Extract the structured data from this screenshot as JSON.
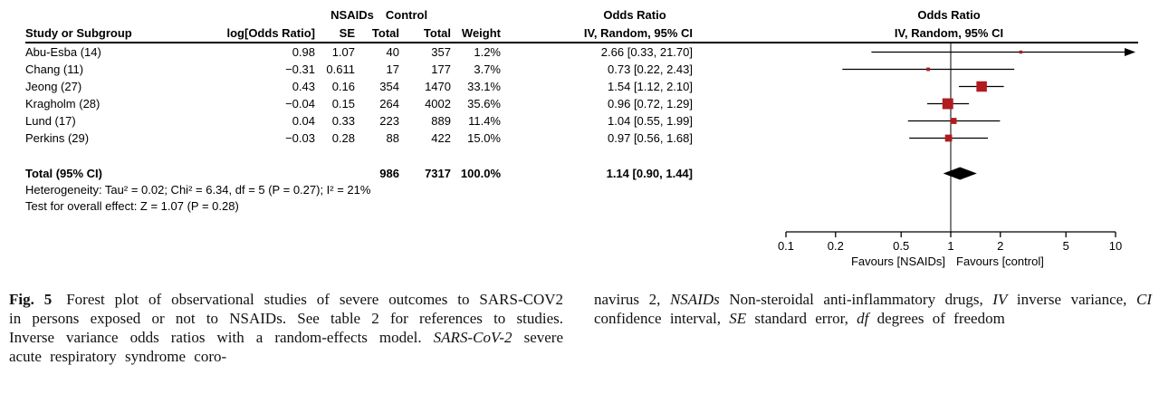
{
  "colors": {
    "marker": "#b01c20",
    "line": "#000000",
    "diamond": "#000000"
  },
  "table": {
    "group_headers": {
      "nsaids": "NSAIDs",
      "control": "Control",
      "odds_ratio_stats": "Odds Ratio",
      "odds_ratio_plot": "Odds Ratio"
    },
    "col_headers": {
      "study": "Study or Subgroup",
      "log_or": "log[Odds Ratio]",
      "se": "SE",
      "total_nsaids": "Total",
      "total_control": "Total",
      "weight": "Weight",
      "or_ci": "IV, Random, 95% CI",
      "plot": "IV, Random, 95% CI"
    },
    "studies": [
      {
        "name": "Abu-Esba (14)",
        "log_or": "0.98",
        "se": "1.07",
        "nsaids_total": "40",
        "control_total": "357",
        "weight": "1.2%",
        "or_ci": "2.66 [0.33, 21.70]"
      },
      {
        "name": "Chang (11)",
        "log_or": "−0.31",
        "se": "0.611",
        "nsaids_total": "17",
        "control_total": "177",
        "weight": "3.7%",
        "or_ci": "0.73 [0.22, 2.43]"
      },
      {
        "name": "Jeong (27)",
        "log_or": "0.43",
        "se": "0.16",
        "nsaids_total": "354",
        "control_total": "1470",
        "weight": "33.1%",
        "or_ci": "1.54 [1.12, 2.10]"
      },
      {
        "name": "Kragholm (28)",
        "log_or": "−0.04",
        "se": "0.15",
        "nsaids_total": "264",
        "control_total": "4002",
        "weight": "35.6%",
        "or_ci": "0.96 [0.72, 1.29]"
      },
      {
        "name": "Lund (17)",
        "log_or": "0.04",
        "se": "0.33",
        "nsaids_total": "223",
        "control_total": "889",
        "weight": "11.4%",
        "or_ci": "1.04 [0.55, 1.99]"
      },
      {
        "name": "Perkins (29)",
        "log_or": "−0.03",
        "se": "0.28",
        "nsaids_total": "88",
        "control_total": "422",
        "weight": "15.0%",
        "or_ci": "0.97 [0.56, 1.68]"
      }
    ],
    "total": {
      "label": "Total (95% CI)",
      "nsaids_total": "986",
      "control_total": "7317",
      "weight": "100.0%",
      "or_ci": "1.14 [0.90, 1.44]"
    },
    "heterogeneity": "Heterogeneity: Tau² = 0.02; Chi² = 6.34, df = 5 (P = 0.27); I² = 21%",
    "overall_effect": "Test for overall effect: Z = 1.07 (P = 0.28)"
  },
  "chart_data": {
    "type": "forest",
    "scale": "log10",
    "xlim": [
      0.1,
      10
    ],
    "axis_ticks": [
      0.1,
      0.2,
      0.5,
      1,
      2,
      5,
      10
    ],
    "null_line": 1,
    "favours_left": "Favours [NSAIDs]",
    "favours_right": "Favours [control]",
    "studies": [
      {
        "name": "Abu-Esba (14)",
        "or": 2.66,
        "ci_low": 0.33,
        "ci_high": 21.7,
        "weight_pct": 1.2
      },
      {
        "name": "Chang (11)",
        "or": 0.73,
        "ci_low": 0.22,
        "ci_high": 2.43,
        "weight_pct": 3.7
      },
      {
        "name": "Jeong (27)",
        "or": 1.54,
        "ci_low": 1.12,
        "ci_high": 2.1,
        "weight_pct": 33.1
      },
      {
        "name": "Kragholm (28)",
        "or": 0.96,
        "ci_low": 0.72,
        "ci_high": 1.29,
        "weight_pct": 35.6
      },
      {
        "name": "Lund (17)",
        "or": 1.04,
        "ci_low": 0.55,
        "ci_high": 1.99,
        "weight_pct": 11.4
      },
      {
        "name": "Perkins (29)",
        "or": 0.97,
        "ci_low": 0.56,
        "ci_high": 1.68,
        "weight_pct": 15.0
      }
    ],
    "total": {
      "or": 1.14,
      "ci_low": 0.9,
      "ci_high": 1.44
    }
  },
  "caption": {
    "fig_label": "Fig. 5",
    "left_1": " Forest plot of observational studies of severe outcomes to SARS-COV2 in persons exposed or not to NSAIDs. See table 2 for references to studies. Inverse variance odds ratios with a random-effects model. ",
    "left_italic": "SARS-CoV-2",
    "left_2": " severe acute respiratory syndrome coro-",
    "right_parts": [
      "navirus 2, ",
      "NSAIDs",
      " Non-steroidal anti-inflammatory drugs, ",
      "IV",
      " inverse variance, ",
      "CI",
      " confidence interval, ",
      "SE",
      " standard error, ",
      "df",
      " degrees of freedom"
    ]
  }
}
